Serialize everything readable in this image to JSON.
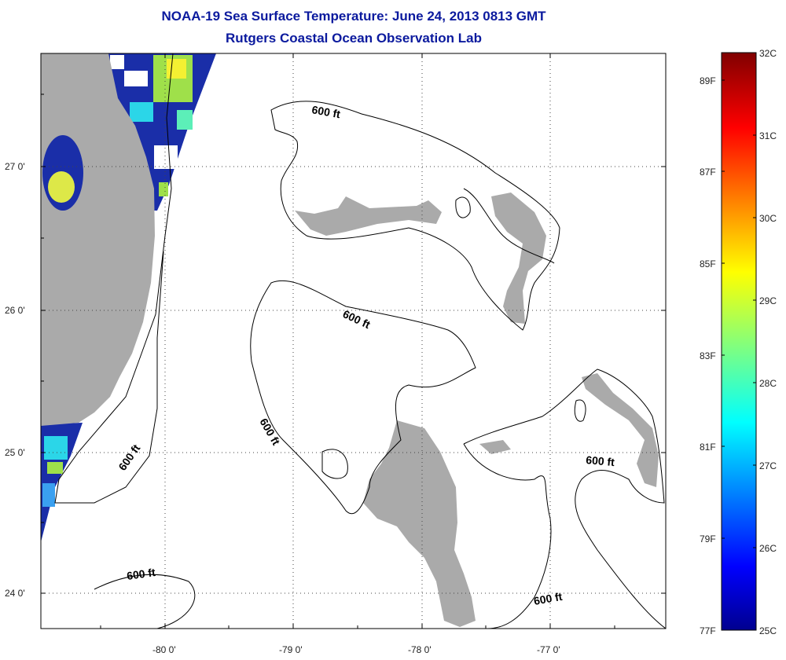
{
  "header": {
    "title": "NOAA-19 Sea Surface Temperature:  June 24, 2013 0813 GMT",
    "subtitle": "Rutgers Coastal Ocean Observation Lab"
  },
  "map": {
    "lon_ticks": [
      "-80 0'",
      "-79 0'",
      "-78 0'",
      "-77 0'"
    ],
    "lat_ticks": [
      "27 0'",
      "26 0'",
      "25 0'",
      "24 0'"
    ],
    "contour_labels": [
      "600 ft",
      "600 ft",
      "600 ft",
      "600 ft",
      "600 ft",
      "600 ft"
    ],
    "colors": {
      "land": "#aaaaaa",
      "frame": "#000000"
    }
  },
  "colorbar": {
    "celsius": [
      "32C",
      "31C",
      "30C",
      "29C",
      "28C",
      "27C",
      "26C",
      "25C"
    ],
    "fahrenheit": [
      "89F",
      "87F",
      "85F",
      "83F",
      "81F",
      "79F",
      "77F"
    ]
  }
}
